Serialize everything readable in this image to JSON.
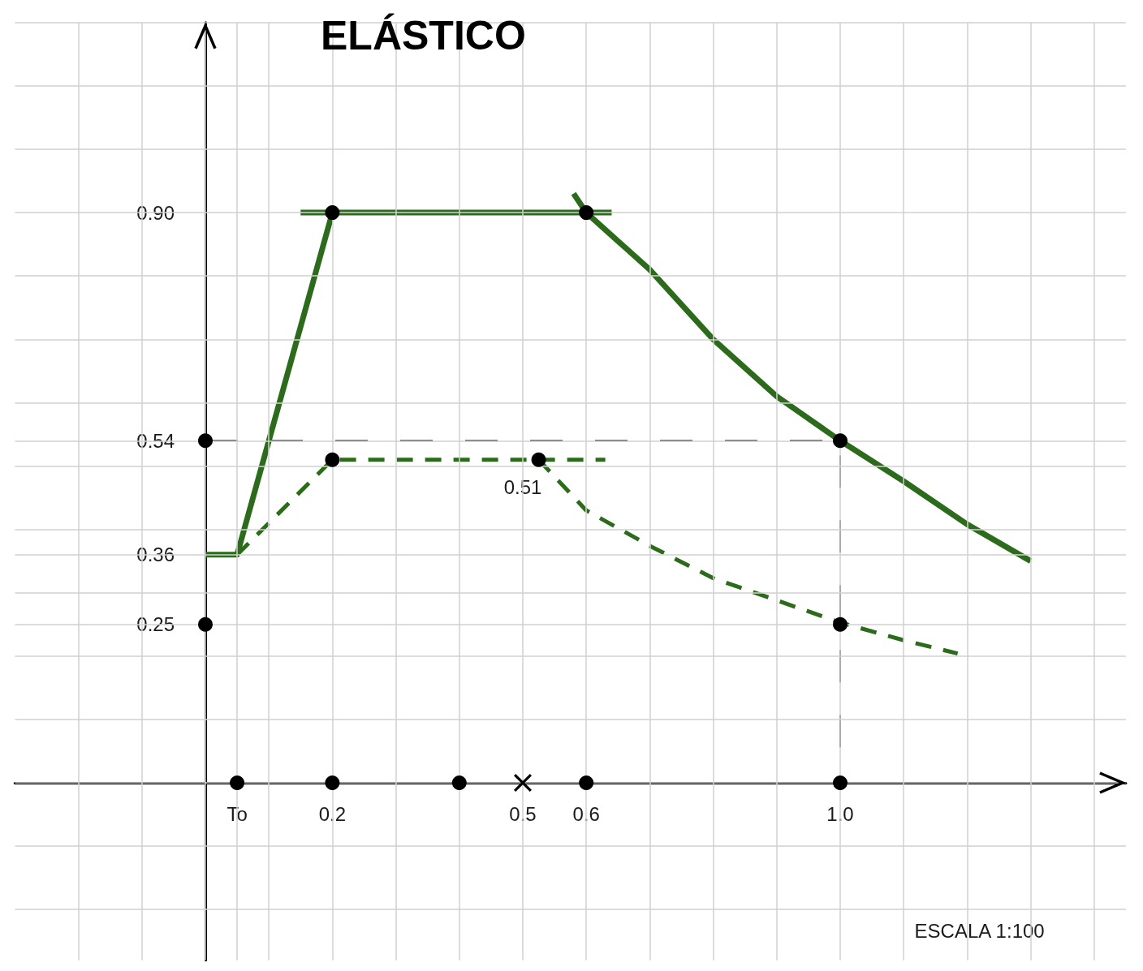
{
  "chart_data": {
    "type": "line",
    "title": "ELÁSTICO",
    "annotations": [
      {
        "text": "0.51",
        "x": 0.5,
        "y": 0.51
      },
      "ESCALA 1:100"
    ],
    "xlim": [
      -0.3,
      1.45
    ],
    "ylim": [
      -0.28,
      1.2
    ],
    "xticks": [
      {
        "value": -0.2,
        "label": null
      },
      {
        "value": -0.1,
        "label": null
      },
      {
        "value": 0,
        "label": null
      },
      {
        "value": 0.05,
        "label": "To"
      },
      {
        "value": 0.1,
        "label": null
      },
      0.2,
      {
        "value": 0.3,
        "label": null
      },
      {
        "value": 0.4,
        "label": null
      },
      0.5,
      0.6,
      {
        "value": 0.7,
        "label": null
      },
      {
        "value": 0.8,
        "label": null
      },
      {
        "value": 0.9,
        "label": null
      },
      {
        "value": 1.0,
        "label": "1.0"
      },
      {
        "value": 1.1,
        "label": null
      },
      {
        "value": 1.2,
        "label": null
      },
      {
        "value": 1.3,
        "label": null
      },
      {
        "value": 1.4,
        "label": null
      }
    ],
    "yticks": [
      {
        "value": -0.2,
        "label": null
      },
      {
        "value": -0.1,
        "label": null
      },
      {
        "value": 0,
        "label": null
      },
      {
        "value": 0.1,
        "label": null
      },
      {
        "value": 0.2,
        "label": null
      },
      0.25,
      {
        "value": 0.3,
        "label": null
      },
      0.36,
      {
        "value": 0.4,
        "label": null
      },
      {
        "value": 0.5,
        "label": null
      },
      0.54,
      {
        "value": 0.6,
        "label": null
      },
      {
        "value": 0.7,
        "label": null
      },
      {
        "value": 0.8,
        "label": null
      },
      {
        "value": 0.9,
        "label": "0.90"
      },
      {
        "value": 1.0,
        "label": null
      },
      {
        "value": 1.1,
        "label": null
      },
      {
        "value": 1.2,
        "label": null
      }
    ],
    "grid": true,
    "series": [
      {
        "type": "line",
        "color": "#2c6b1c",
        "line_style": "solid",
        "marker": "none",
        "x": [
          0,
          0.05,
          0.2
        ],
        "values": [
          0.36,
          0.36,
          0.9
        ]
      },
      {
        "type": "line",
        "color": "#2c6b1c",
        "line_style": "solid",
        "marker": "none",
        "x": [
          0.15,
          0.64
        ],
        "values": [
          0.9,
          0.9
        ]
      },
      {
        "type": "line",
        "color": "#2c6b1c",
        "line_style": "solid",
        "marker": "none",
        "x": [
          0.58,
          0.6,
          0.7,
          0.8,
          0.9,
          1.0,
          1.1,
          1.2,
          1.3
        ],
        "values": [
          0.93,
          0.9,
          0.81,
          0.7,
          0.61,
          0.54,
          0.476,
          0.408,
          0.35
        ]
      },
      {
        "type": "line",
        "color": "#2c6b1c",
        "line_style": "dashed",
        "marker": "none",
        "x": [
          0.05,
          0.2,
          0.63
        ],
        "values": [
          0.36,
          0.51,
          0.51
        ]
      },
      {
        "type": "line",
        "color": "#2c6b1c",
        "line_style": "dashed",
        "marker": "none",
        "x": [
          0.525,
          0.6,
          0.7,
          0.8,
          0.9,
          1.0,
          1.1,
          1.185
        ],
        "values": [
          0.51,
          0.43,
          0.374,
          0.323,
          0.288,
          0.253,
          0.225,
          0.204
        ]
      },
      {
        "type": "line",
        "color": "#000000",
        "line_style": "dashed",
        "marker": "none",
        "x": [
          0,
          1.0,
          1.0
        ],
        "values": [
          0.54,
          0.54,
          0
        ]
      },
      {
        "type": "scatter",
        "color": "#000000",
        "marker": "circle",
        "x": [
          0.2,
          0.6,
          0,
          1.0,
          0.2,
          0.525,
          0,
          1.0,
          0.05,
          0.2,
          0.4,
          0.6,
          1.0
        ],
        "values": [
          0.9,
          0.9,
          0.54,
          0.54,
          0.51,
          0.51,
          0.25,
          0.25,
          0,
          0,
          0,
          0,
          0
        ]
      },
      {
        "type": "scatter",
        "color": "#000000",
        "marker": "cross",
        "x": [
          0.5
        ],
        "values": [
          0
        ]
      }
    ]
  }
}
